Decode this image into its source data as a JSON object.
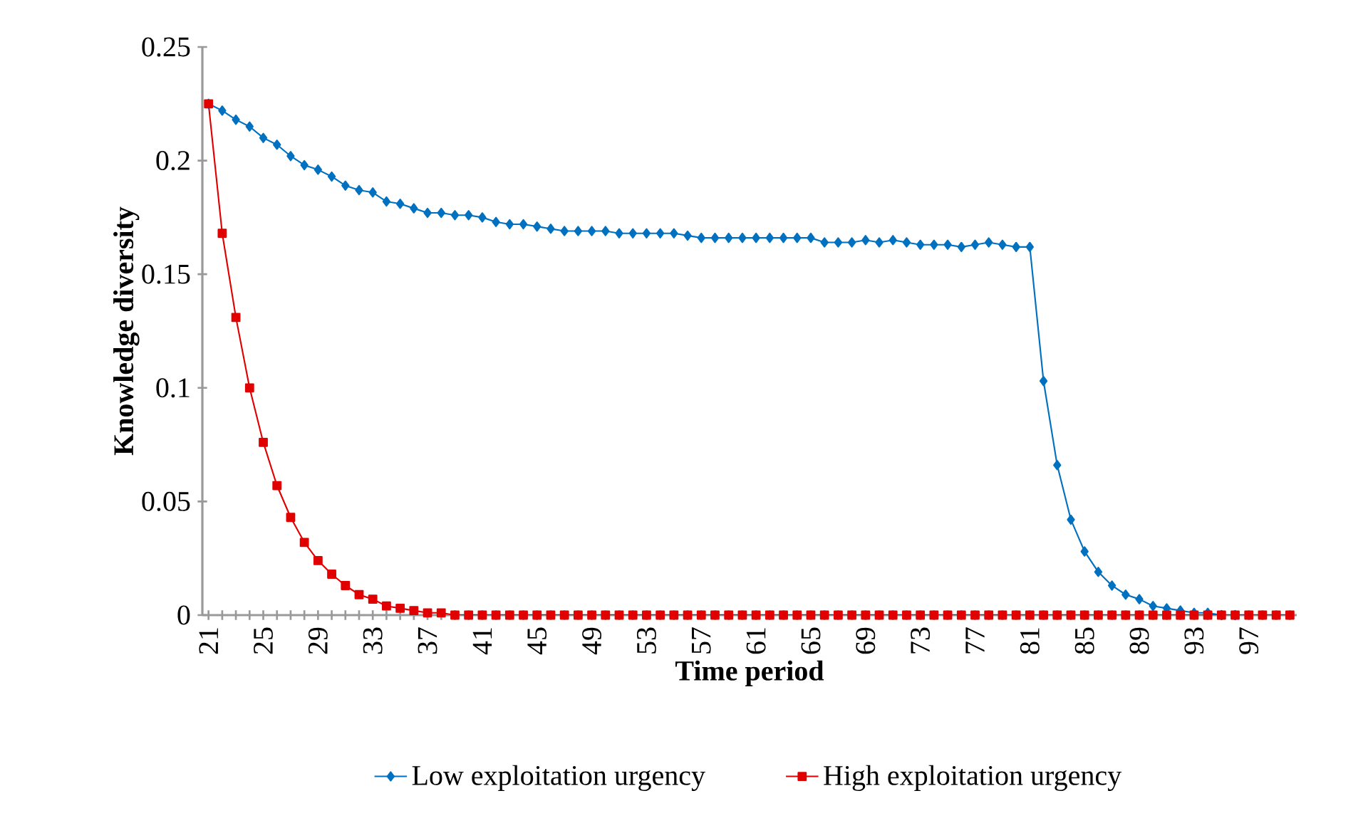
{
  "chart_data": {
    "type": "line",
    "xlabel": "Time period",
    "ylabel": "Knowledge diversity",
    "categories": [
      "21",
      null,
      null,
      null,
      "25",
      null,
      null,
      null,
      "29",
      null,
      null,
      null,
      "33",
      null,
      null,
      null,
      "37",
      null,
      null,
      null,
      "41",
      null,
      null,
      null,
      "45",
      null,
      null,
      null,
      "49",
      null,
      null,
      null,
      "53",
      null,
      null,
      null,
      "57",
      null,
      null,
      null,
      "61",
      null,
      null,
      null,
      "65",
      null,
      null,
      null,
      "69",
      null,
      null,
      null,
      "73",
      null,
      null,
      null,
      "77",
      null,
      null,
      null,
      "81",
      null,
      null,
      null,
      "85",
      null,
      null,
      null,
      "89",
      null,
      null,
      null,
      "93",
      null,
      null,
      null,
      "97",
      null,
      null,
      null
    ],
    "ylim": [
      0,
      0.25
    ],
    "yticks": [
      0,
      0.05,
      0.1,
      0.15,
      0.2,
      0.25
    ],
    "grid": false,
    "legend": "bottom",
    "series": [
      {
        "name": "Low exploitation urgency",
        "color": "#0070c0",
        "marker": "diamond",
        "values": [
          0.225,
          0.222,
          0.218,
          0.215,
          0.21,
          0.207,
          0.202,
          0.198,
          0.196,
          0.193,
          0.189,
          0.187,
          0.186,
          0.182,
          0.181,
          0.179,
          0.177,
          0.177,
          0.176,
          0.176,
          0.175,
          0.173,
          0.172,
          0.172,
          0.171,
          0.17,
          0.169,
          0.169,
          0.169,
          0.169,
          0.168,
          0.168,
          0.168,
          0.168,
          0.168,
          0.167,
          0.166,
          0.166,
          0.166,
          0.166,
          0.166,
          0.166,
          0.166,
          0.166,
          0.166,
          0.164,
          0.164,
          0.164,
          0.165,
          0.164,
          0.165,
          0.164,
          0.163,
          0.163,
          0.163,
          0.162,
          0.163,
          0.164,
          0.163,
          0.162,
          0.162,
          0.103,
          0.066,
          0.042,
          0.028,
          0.019,
          0.013,
          0.009,
          0.007,
          0.004,
          0.003,
          0.002,
          0.001,
          0.001,
          0,
          0,
          null,
          null,
          null,
          null
        ]
      },
      {
        "name": "High exploitation urgency",
        "color": "#e00000",
        "marker": "square",
        "values": [
          0.225,
          0.168,
          0.131,
          0.1,
          0.076,
          0.057,
          0.043,
          0.032,
          0.024,
          0.018,
          0.013,
          0.009,
          0.007,
          0.004,
          0.003,
          0.002,
          0.001,
          0.001,
          0,
          0,
          0,
          0,
          0,
          0,
          0,
          0,
          0,
          0,
          0,
          0,
          0,
          0,
          0,
          0,
          0,
          0,
          0,
          0,
          0,
          0,
          0,
          0,
          0,
          0,
          0,
          0,
          0,
          0,
          0,
          0,
          0,
          0,
          0,
          0,
          0,
          0,
          0,
          0,
          0,
          0,
          0,
          0,
          0,
          0,
          0,
          0,
          0,
          0,
          0,
          0,
          0,
          0,
          0,
          0,
          0,
          0,
          0,
          0,
          0,
          0
        ]
      }
    ]
  }
}
